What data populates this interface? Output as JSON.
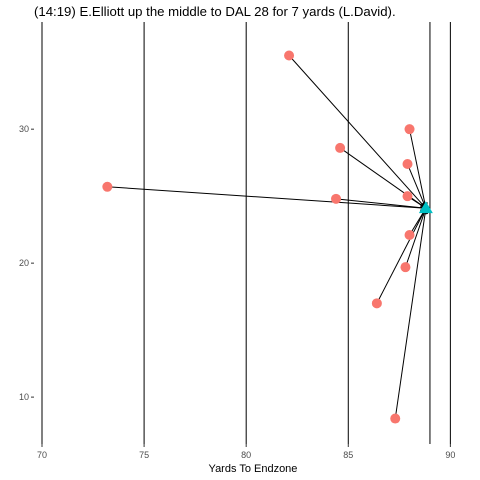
{
  "chart_data": {
    "type": "scatter",
    "title": "(14:19) E.Elliott up the middle to DAL 28 for 7 yards (L.David).",
    "xlabel": "Yards To Endzone",
    "ylabel": "",
    "xlim": [
      70,
      91.5
    ],
    "ylim": [
      6.5,
      38
    ],
    "x_ticks": [
      70,
      75,
      80,
      85,
      90
    ],
    "x_tick_labels": [
      "70",
      "75",
      "80",
      "85",
      "90"
    ],
    "y_ticks": [
      10,
      20,
      30
    ],
    "y_tick_labels": [
      "10",
      "20",
      "30"
    ],
    "vertical_lines_x": [
      70,
      75,
      80,
      85,
      89,
      90
    ],
    "grid": false,
    "target": {
      "x": 88.8,
      "y": 24.1
    },
    "points": [
      {
        "x": 82.1,
        "y": 35.5
      },
      {
        "x": 88.0,
        "y": 30.0
      },
      {
        "x": 84.6,
        "y": 28.6
      },
      {
        "x": 87.9,
        "y": 27.4
      },
      {
        "x": 73.2,
        "y": 25.7
      },
      {
        "x": 87.9,
        "y": 25.0
      },
      {
        "x": 84.4,
        "y": 24.8
      },
      {
        "x": 88.0,
        "y": 22.1
      },
      {
        "x": 87.8,
        "y": 19.7
      },
      {
        "x": 86.4,
        "y": 17.0
      },
      {
        "x": 87.3,
        "y": 8.4
      }
    ],
    "colors": {
      "points": "#F8766D",
      "target": "#00BFC4",
      "lines": "#000000"
    }
  }
}
